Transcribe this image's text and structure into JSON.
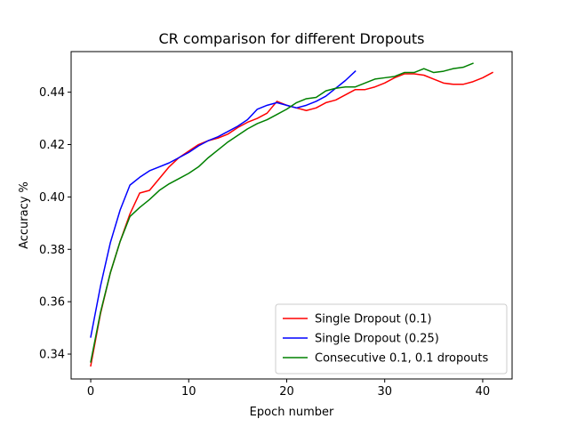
{
  "chart_data": {
    "type": "line",
    "title": "CR comparison for different Dropouts",
    "xlabel": "Epoch number",
    "ylabel": "Accuracy %",
    "xlim": [
      -2,
      43
    ],
    "ylim": [
      0.3305,
      0.4555
    ],
    "xticks": [
      0,
      10,
      20,
      30,
      40
    ],
    "yticks": [
      0.34,
      0.36,
      0.38,
      0.4,
      0.42,
      0.44
    ],
    "ytick_labels": [
      "0.34",
      "0.36",
      "0.38",
      "0.40",
      "0.42",
      "0.44"
    ],
    "grid": false,
    "legend_position": "lower-right",
    "series": [
      {
        "name": "Single Dropout (0.1)",
        "color": "#ff0000",
        "x": [
          0,
          1,
          2,
          3,
          4,
          5,
          6,
          7,
          8,
          9,
          10,
          11,
          12,
          13,
          14,
          15,
          16,
          17,
          18,
          19,
          20,
          21,
          22,
          23,
          24,
          25,
          26,
          27,
          28,
          29,
          30,
          31,
          32,
          33,
          34,
          35,
          36,
          37,
          38,
          39,
          40,
          41
        ],
        "y": [
          0.3355,
          0.3555,
          0.371,
          0.383,
          0.3935,
          0.4015,
          0.4025,
          0.407,
          0.4115,
          0.415,
          0.4175,
          0.42,
          0.4215,
          0.4225,
          0.424,
          0.4265,
          0.4285,
          0.43,
          0.432,
          0.4365,
          0.435,
          0.434,
          0.433,
          0.434,
          0.436,
          0.437,
          0.439,
          0.441,
          0.441,
          0.442,
          0.4435,
          0.4455,
          0.447,
          0.447,
          0.4465,
          0.445,
          0.4435,
          0.443,
          0.443,
          0.444,
          0.4455,
          0.4475
        ]
      },
      {
        "name": "Single Dropout (0.25)",
        "color": "#0000ff",
        "x": [
          0,
          1,
          2,
          3,
          4,
          5,
          6,
          7,
          8,
          9,
          10,
          11,
          12,
          13,
          14,
          15,
          16,
          17,
          18,
          19,
          20,
          21,
          22,
          23,
          24,
          25,
          26,
          27
        ],
        "y": [
          0.3465,
          0.366,
          0.3825,
          0.395,
          0.4045,
          0.4075,
          0.41,
          0.4115,
          0.413,
          0.415,
          0.417,
          0.4195,
          0.4215,
          0.423,
          0.425,
          0.427,
          0.4295,
          0.4335,
          0.435,
          0.436,
          0.435,
          0.434,
          0.435,
          0.4365,
          0.4385,
          0.4415,
          0.4445,
          0.448
        ]
      },
      {
        "name": "Consecutive 0.1, 0.1 dropouts",
        "color": "#008000",
        "x": [
          0,
          1,
          2,
          3,
          4,
          5,
          6,
          7,
          8,
          9,
          10,
          11,
          12,
          13,
          14,
          15,
          16,
          17,
          18,
          19,
          20,
          21,
          22,
          23,
          24,
          25,
          26,
          27,
          28,
          29,
          30,
          31,
          32,
          33,
          34,
          35,
          36,
          37,
          38,
          39
        ],
        "y": [
          0.337,
          0.356,
          0.371,
          0.383,
          0.3925,
          0.396,
          0.399,
          0.4025,
          0.405,
          0.407,
          0.409,
          0.4115,
          0.415,
          0.418,
          0.421,
          0.4235,
          0.426,
          0.428,
          0.4295,
          0.4315,
          0.4335,
          0.436,
          0.4375,
          0.438,
          0.4405,
          0.4415,
          0.442,
          0.442,
          0.4435,
          0.445,
          0.4455,
          0.446,
          0.4475,
          0.4475,
          0.449,
          0.4475,
          0.448,
          0.449,
          0.4495,
          0.451
        ]
      }
    ]
  }
}
